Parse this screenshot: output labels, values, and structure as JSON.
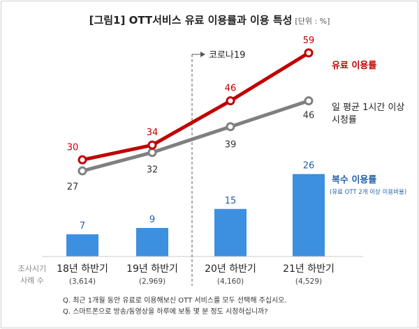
{
  "title": "[그림1] OTT서비스 유료 이용률과 이용 특성",
  "unit": "[단위 : %]",
  "row_labels": {
    "period": "조사시기",
    "sample": "사례 수"
  },
  "covid_label": "코로나19",
  "notes": [
    "Q. 최근 1개월 동안 유료로 이용해보신 OTT 서비스를 모두 선택해 주십시오.",
    "Q. 스마트폰으로 방송/동영상을 하루에 보통 몇 분 정도 시청하십니까?"
  ],
  "colors": {
    "paid": "#c00000",
    "daily": "#7f7f7f",
    "multi": "#3d8fe0",
    "multi_text": "#1f5fa8"
  },
  "chart_data": {
    "type": "bar",
    "categories": [
      "18년 하반기",
      "19년 하반기",
      "20년 하반기",
      "21년 하반기"
    ],
    "sample_sizes": [
      "(3,614)",
      "(2,969)",
      "(4,160)",
      "(4,529)"
    ],
    "series": [
      {
        "name": "유료 이용률",
        "type": "line",
        "values": [
          30,
          34,
          46,
          59
        ]
      },
      {
        "name": "일 평균 1시간 이상 시청률",
        "name_lines": [
          "일 평균 1시간 이상",
          "시청률"
        ],
        "type": "line",
        "values": [
          27,
          32,
          39,
          46
        ]
      },
      {
        "name": "복수 이용률",
        "subname": "(유료 OTT 2개 이상 이용비율)",
        "type": "bar",
        "values": [
          7,
          9,
          15,
          26
        ]
      }
    ]
  }
}
